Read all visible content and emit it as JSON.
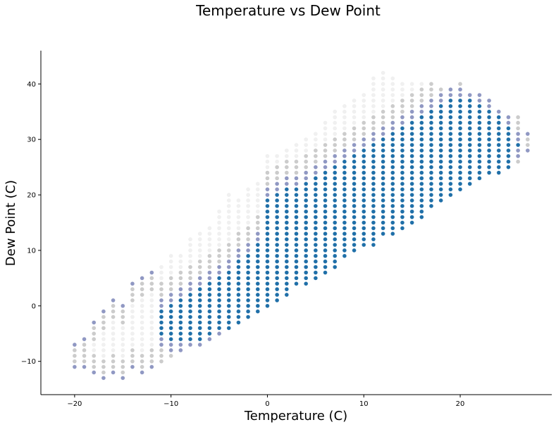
{
  "chart_data": {
    "type": "scatter",
    "title": "Temperature vs Dew Point",
    "xlabel": "Temperature (C)",
    "ylabel": "Dew Point (C)",
    "xlim": [
      -23.5,
      29.5
    ],
    "ylim": [
      -16,
      46
    ],
    "xticks": [
      -20,
      -10,
      0,
      10,
      20
    ],
    "yticks": [
      -10,
      0,
      10,
      20,
      30,
      40
    ],
    "xtick_labels": [
      "−20",
      "−10",
      "0",
      "10",
      "20"
    ],
    "ytick_labels": [
      "−10",
      "0",
      "10",
      "20",
      "30",
      "40"
    ],
    "x_step": 1,
    "y_step": 1,
    "grid": false,
    "marker": "circle",
    "colors": {
      "dense": "#1f6fa8",
      "medium": "#7c86b8",
      "sparse": "#b7b7b7",
      "faint": "#e6e6e6"
    },
    "columns": [
      {
        "x": -20,
        "y_min": -11,
        "y_max": -7,
        "dense_min": 0,
        "dense_max": -1
      },
      {
        "x": -19,
        "y_min": -11,
        "y_max": -6,
        "dense_min": 0,
        "dense_max": -1
      },
      {
        "x": -18,
        "y_min": -12,
        "y_max": -3,
        "dense_min": 0,
        "dense_max": -1
      },
      {
        "x": -17,
        "y_min": -13,
        "y_max": -1,
        "dense_min": 0,
        "dense_max": -1
      },
      {
        "x": -16,
        "y_min": -12,
        "y_max": 1,
        "dense_min": 0,
        "dense_max": -1
      },
      {
        "x": -15,
        "y_min": -13,
        "y_max": 0,
        "dense_min": 0,
        "dense_max": -1
      },
      {
        "x": -14,
        "y_min": -11,
        "y_max": 4,
        "dense_min": 0,
        "dense_max": -1
      },
      {
        "x": -13,
        "y_min": -12,
        "y_max": 5,
        "dense_min": 0,
        "dense_max": -1
      },
      {
        "x": -12,
        "y_min": -11,
        "y_max": 6,
        "dense_min": 0,
        "dense_max": -1
      },
      {
        "x": -11,
        "y_min": -10,
        "y_max": 7,
        "dense_min": -5,
        "dense_max": -1
      },
      {
        "x": -10,
        "y_min": -9,
        "y_max": 9,
        "dense_min": -6,
        "dense_max": 0
      },
      {
        "x": -9,
        "y_min": -8,
        "y_max": 9,
        "dense_min": -6,
        "dense_max": 1
      },
      {
        "x": -8,
        "y_min": -7,
        "y_max": 12,
        "dense_min": -6,
        "dense_max": 2
      },
      {
        "x": -7,
        "y_min": -7,
        "y_max": 13,
        "dense_min": -6,
        "dense_max": 3
      },
      {
        "x": -6,
        "y_min": -6,
        "y_max": 14,
        "dense_min": -5,
        "dense_max": 4
      },
      {
        "x": -5,
        "y_min": -5,
        "y_max": 17,
        "dense_min": -4,
        "dense_max": 5
      },
      {
        "x": -4,
        "y_min": -4,
        "y_max": 20,
        "dense_min": -4,
        "dense_max": 6
      },
      {
        "x": -3,
        "y_min": -3,
        "y_max": 19,
        "dense_min": -3,
        "dense_max": 8
      },
      {
        "x": -2,
        "y_min": -2,
        "y_max": 21,
        "dense_min": -2,
        "dense_max": 9
      },
      {
        "x": -1,
        "y_min": -1,
        "y_max": 22,
        "dense_min": -1,
        "dense_max": 11
      },
      {
        "x": 0,
        "y_min": 0,
        "y_max": 27,
        "dense_min": 0,
        "dense_max": 19
      },
      {
        "x": 1,
        "y_min": 1,
        "y_max": 27,
        "dense_min": 1,
        "dense_max": 20
      },
      {
        "x": 2,
        "y_min": 2,
        "y_max": 28,
        "dense_min": 2,
        "dense_max": 21
      },
      {
        "x": 3,
        "y_min": 4,
        "y_max": 29,
        "dense_min": 4,
        "dense_max": 21
      },
      {
        "x": 4,
        "y_min": 4,
        "y_max": 30,
        "dense_min": 4,
        "dense_max": 22
      },
      {
        "x": 5,
        "y_min": 5,
        "y_max": 31,
        "dense_min": 5,
        "dense_max": 23
      },
      {
        "x": 6,
        "y_min": 6,
        "y_max": 33,
        "dense_min": 6,
        "dense_max": 24
      },
      {
        "x": 7,
        "y_min": 7,
        "y_max": 35,
        "dense_min": 7,
        "dense_max": 25
      },
      {
        "x": 8,
        "y_min": 9,
        "y_max": 36,
        "dense_min": 9,
        "dense_max": 26
      },
      {
        "x": 9,
        "y_min": 10,
        "y_max": 37,
        "dense_min": 10,
        "dense_max": 27
      },
      {
        "x": 10,
        "y_min": 11,
        "y_max": 38,
        "dense_min": 11,
        "dense_max": 28
      },
      {
        "x": 11,
        "y_min": 11,
        "y_max": 41,
        "dense_min": 11,
        "dense_max": 29
      },
      {
        "x": 12,
        "y_min": 13,
        "y_max": 42,
        "dense_min": 13,
        "dense_max": 30
      },
      {
        "x": 13,
        "y_min": 13,
        "y_max": 41,
        "dense_min": 13,
        "dense_max": 31
      },
      {
        "x": 14,
        "y_min": 14,
        "y_max": 40,
        "dense_min": 14,
        "dense_max": 32
      },
      {
        "x": 15,
        "y_min": 15,
        "y_max": 40,
        "dense_min": 15,
        "dense_max": 33
      },
      {
        "x": 16,
        "y_min": 16,
        "y_max": 40,
        "dense_min": 16,
        "dense_max": 34
      },
      {
        "x": 17,
        "y_min": 18,
        "y_max": 40,
        "dense_min": 18,
        "dense_max": 35
      },
      {
        "x": 18,
        "y_min": 19,
        "y_max": 39,
        "dense_min": 19,
        "dense_max": 36
      },
      {
        "x": 19,
        "y_min": 20,
        "y_max": 39,
        "dense_min": 20,
        "dense_max": 37
      },
      {
        "x": 20,
        "y_min": 21,
        "y_max": 40,
        "dense_min": 21,
        "dense_max": 37
      },
      {
        "x": 21,
        "y_min": 22,
        "y_max": 38,
        "dense_min": 22,
        "dense_max": 37
      },
      {
        "x": 22,
        "y_min": 23,
        "y_max": 38,
        "dense_min": 23,
        "dense_max": 36
      },
      {
        "x": 23,
        "y_min": 24,
        "y_max": 37,
        "dense_min": 24,
        "dense_max": 35
      },
      {
        "x": 24,
        "y_min": 24,
        "y_max": 35,
        "dense_min": 24,
        "dense_max": 34
      },
      {
        "x": 25,
        "y_min": 25,
        "y_max": 34,
        "dense_min": 25,
        "dense_max": 32
      },
      {
        "x": 26,
        "y_min": 26,
        "y_max": 34,
        "dense_min": 29,
        "dense_max": 29
      },
      {
        "x": 27,
        "y_min": 28,
        "y_max": 31,
        "dense_min": 0,
        "dense_max": -1
      }
    ]
  }
}
